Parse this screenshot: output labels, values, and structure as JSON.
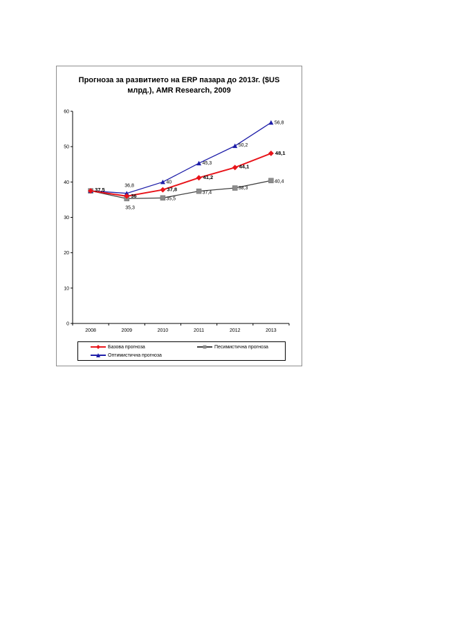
{
  "chart_data": {
    "type": "line",
    "title": "Прогноза за развитието на ERP пазара до 2013г. ($US\nмлрд.), AMR Research, 2009",
    "categories": [
      "2008",
      "2009",
      "2010",
      "2011",
      "2012",
      "2013"
    ],
    "ylim": [
      0,
      60
    ],
    "yticks": [
      "0",
      "10",
      "20",
      "30",
      "40",
      "50",
      "60"
    ],
    "xlabel": "",
    "ylabel": "",
    "grid": false,
    "legend_position": "bottom",
    "series": [
      {
        "name": "Базова прогноза",
        "color": "#e8141a",
        "marker": "diamond",
        "values": [
          37.5,
          36,
          37.8,
          41.2,
          44.1,
          48.1
        ],
        "labels": [
          "37,5",
          "36",
          "37,8",
          "41,2",
          "44,1",
          "48,1"
        ]
      },
      {
        "name": "Песимистична прогноза",
        "color": "#3f3f3f",
        "marker": "square",
        "values": [
          37.5,
          35.3,
          35.5,
          37.4,
          38.3,
          40.4
        ],
        "labels": [
          "",
          "35,3",
          "35,5",
          "37,4",
          "38,3",
          "40,4"
        ]
      },
      {
        "name": "Оптимистична прогноза",
        "color": "#1c1ca8",
        "marker": "triangle",
        "values": [
          37.5,
          36.8,
          40,
          45.3,
          50.2,
          56.8
        ],
        "labels": [
          "",
          "36,8",
          "40",
          "45,3",
          "50,2",
          "56,8"
        ]
      }
    ]
  }
}
